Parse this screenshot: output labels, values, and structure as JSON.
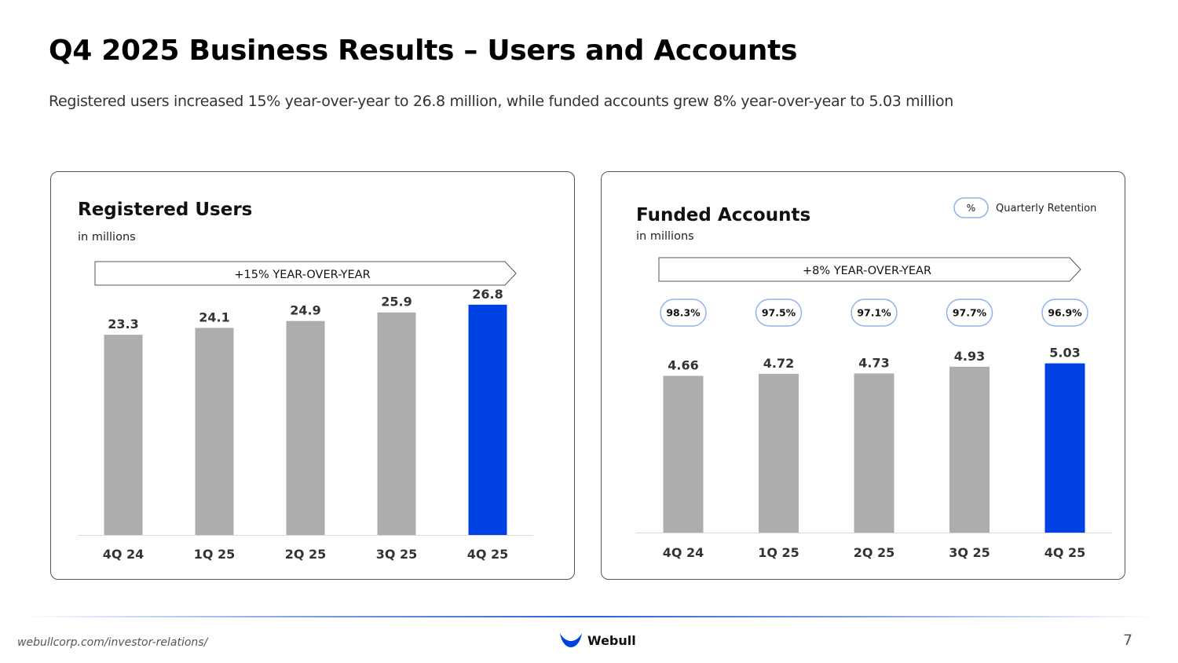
{
  "header": {
    "title": "Q4 2025 Business Results – Users and Accounts",
    "subtitle": "Registered users increased 15% year-over-year to 26.8 million, while funded accounts grew 8% year-over-year to 5.03 million"
  },
  "colors": {
    "bar_default": "#ADADAD",
    "bar_highlight": "#0041E4",
    "retention_border": "#8FB3E8"
  },
  "chart_data": [
    {
      "type": "bar",
      "title": "Registered Users",
      "subtitle": "in millions",
      "growth_label": "+15% YEAR-OVER-YEAR",
      "categories": [
        "4Q 24",
        "1Q 25",
        "2Q 25",
        "3Q 25",
        "4Q 25"
      ],
      "values": [
        23.3,
        24.1,
        24.9,
        25.9,
        26.8
      ],
      "value_labels": [
        "23.3",
        "24.1",
        "24.9",
        "25.9",
        "26.8"
      ],
      "highlight_index": 4,
      "ylim": [
        0,
        32
      ]
    },
    {
      "type": "bar",
      "title": "Funded Accounts",
      "subtitle": "in millions",
      "growth_label": "+8% YEAR-OVER-YEAR",
      "categories": [
        "4Q 24",
        "1Q 25",
        "2Q 25",
        "3Q 25",
        "4Q 25"
      ],
      "values": [
        4.66,
        4.72,
        4.73,
        4.93,
        5.03
      ],
      "value_labels": [
        "4.66",
        "4.72",
        "4.73",
        "4.93",
        "5.03"
      ],
      "retention": [
        "98.3%",
        "97.5%",
        "97.1%",
        "97.7%",
        "96.9%"
      ],
      "legend": {
        "symbol": "%",
        "label": "Quarterly Retention"
      },
      "highlight_index": 4,
      "ylim": [
        0,
        6.07
      ]
    }
  ],
  "footer": {
    "url": "webullcorp.com/investor-relations/",
    "brand": "Webull",
    "page_number": "7"
  }
}
